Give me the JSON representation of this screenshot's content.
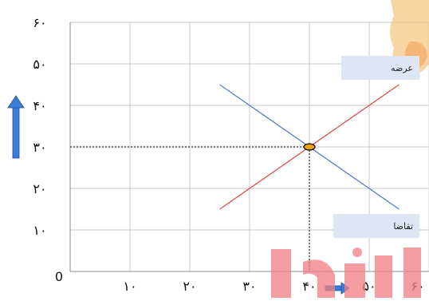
{
  "chart_data": {
    "type": "line",
    "x_ticks": [
      "۱۰",
      "۲۰",
      "۳۰",
      "۴۰",
      "۵۰",
      "۶۰"
    ],
    "y_ticks": [
      "۱۰",
      "۲۰",
      "۳۰",
      "۴۰",
      "۵۰",
      "۶۰"
    ],
    "origin_label": "0",
    "xlim": [
      0,
      60
    ],
    "ylim": [
      0,
      60
    ],
    "grid": true,
    "series": [
      {
        "name": "عرضه",
        "color": "#d9534f",
        "points": [
          [
            25,
            15
          ],
          [
            55,
            45
          ]
        ]
      },
      {
        "name": "تقاضا",
        "color": "#5b7fc7",
        "points": [
          [
            25,
            45
          ],
          [
            55,
            15
          ]
        ]
      }
    ],
    "equilibrium": {
      "x": 40,
      "y": 30,
      "color": "#e8a100"
    },
    "guide_color": "#000000",
    "arrow_color": "#3b7dd8"
  },
  "labels": {
    "supply": "عرضه",
    "demand": "تقاضا"
  }
}
